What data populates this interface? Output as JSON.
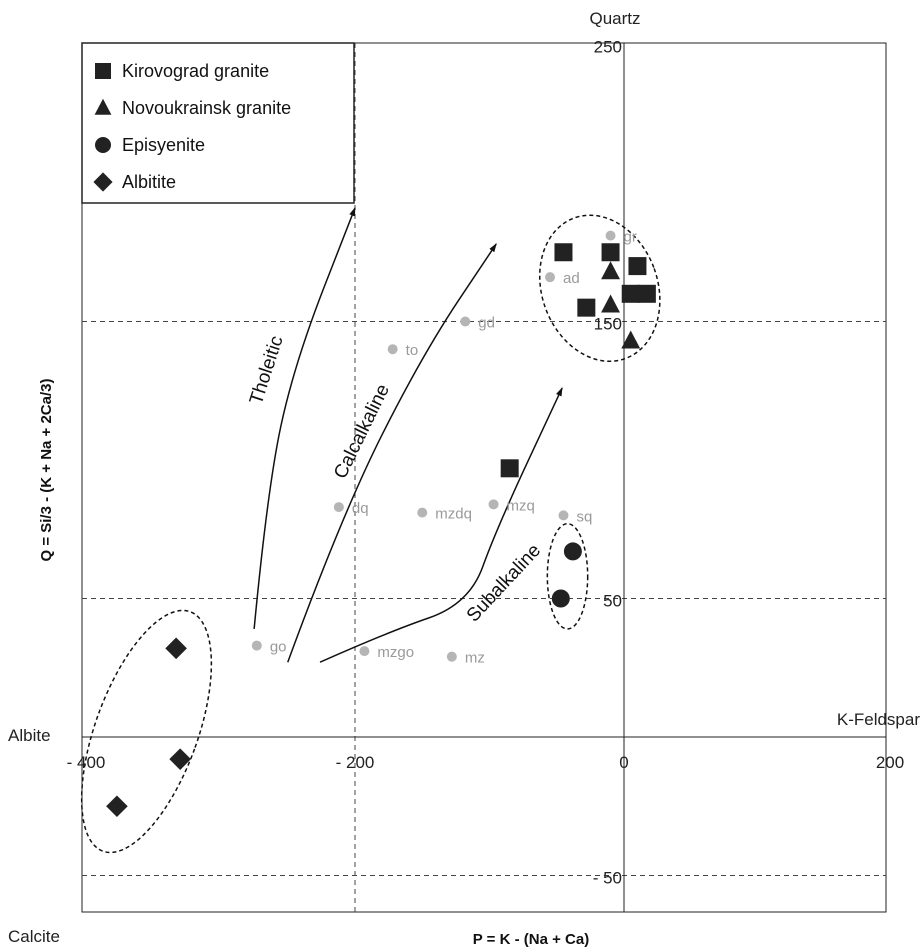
{
  "chart_data": {
    "type": "scatter",
    "xlabel": "P = K - (Na + Ca)",
    "ylabel": "Q = Si/3 - (K + Na + 2Ca/3)",
    "xlim": [
      -400,
      200
    ],
    "ylim": [
      -60,
      250
    ],
    "x_ticks": [
      {
        "value": -400,
        "label": "- 400"
      },
      {
        "value": -200,
        "label": "- 200"
      },
      {
        "value": 0,
        "label": "0"
      },
      {
        "value": 200,
        "label": "200"
      }
    ],
    "y_ticks": [
      {
        "value": 250,
        "label": "250"
      },
      {
        "value": 150,
        "label": "150"
      },
      {
        "value": 50,
        "label": "50"
      },
      {
        "value": -50,
        "label": "- 50"
      }
    ],
    "dashed_gridlines": {
      "x": [
        -200
      ],
      "y": [
        150,
        50,
        -50
      ]
    },
    "grid": false,
    "corner_labels": {
      "top": "Quartz",
      "left": "Albite",
      "right": "K-Feldspar",
      "bottom_left": "Calcite"
    },
    "series": [
      {
        "name": "Kirovograd granite",
        "marker": "square",
        "color": "#222222",
        "points": [
          [
            -45,
            175
          ],
          [
            -10,
            175
          ],
          [
            10,
            170
          ],
          [
            5,
            160
          ],
          [
            17,
            160
          ],
          [
            -28,
            155
          ],
          [
            -85,
            97
          ]
        ]
      },
      {
        "name": "Novoukrainsk granite",
        "marker": "triangle",
        "color": "#222222",
        "points": [
          [
            -10,
            168
          ],
          [
            -10,
            156
          ],
          [
            5,
            143
          ]
        ]
      },
      {
        "name": "Episyenite",
        "marker": "circle",
        "color": "#222222",
        "points": [
          [
            -38,
            67
          ],
          [
            -47,
            50
          ]
        ]
      },
      {
        "name": "Albitite",
        "marker": "diamond",
        "color": "#222222",
        "points": [
          [
            -333,
            32
          ],
          [
            -330,
            -8
          ],
          [
            -377,
            -25
          ]
        ]
      }
    ],
    "reference_points": [
      {
        "label": "gr",
        "x": -10,
        "y": 181
      },
      {
        "label": "ad",
        "x": -55,
        "y": 166
      },
      {
        "label": "gd",
        "x": -118,
        "y": 150
      },
      {
        "label": "to",
        "x": -172,
        "y": 140
      },
      {
        "label": "dq",
        "x": -212,
        "y": 83
      },
      {
        "label": "mzdq",
        "x": -150,
        "y": 81
      },
      {
        "label": "mzq",
        "x": -97,
        "y": 84
      },
      {
        "label": "sq",
        "x": -45,
        "y": 80
      },
      {
        "label": "go",
        "x": -273,
        "y": 33
      },
      {
        "label": "mzgo",
        "x": -193,
        "y": 31
      },
      {
        "label": "mz",
        "x": -128,
        "y": 29
      }
    ],
    "trend_lines": [
      {
        "label": "Tholeitic",
        "path": [
          [
            -275,
            39
          ],
          [
            -265,
            90
          ],
          [
            -245,
            135
          ],
          [
            -200,
            191
          ]
        ]
      },
      {
        "label": "Calcalkaline",
        "path": [
          [
            -250,
            27
          ],
          [
            -210,
            80
          ],
          [
            -150,
            138
          ],
          [
            -95,
            178
          ]
        ]
      },
      {
        "label": "Subalkaline",
        "path": [
          [
            -226,
            27
          ],
          [
            -175,
            38
          ],
          [
            -115,
            48
          ],
          [
            -95,
            75
          ],
          [
            -46,
            126
          ]
        ]
      }
    ],
    "legend": {
      "position": "top-left"
    }
  }
}
